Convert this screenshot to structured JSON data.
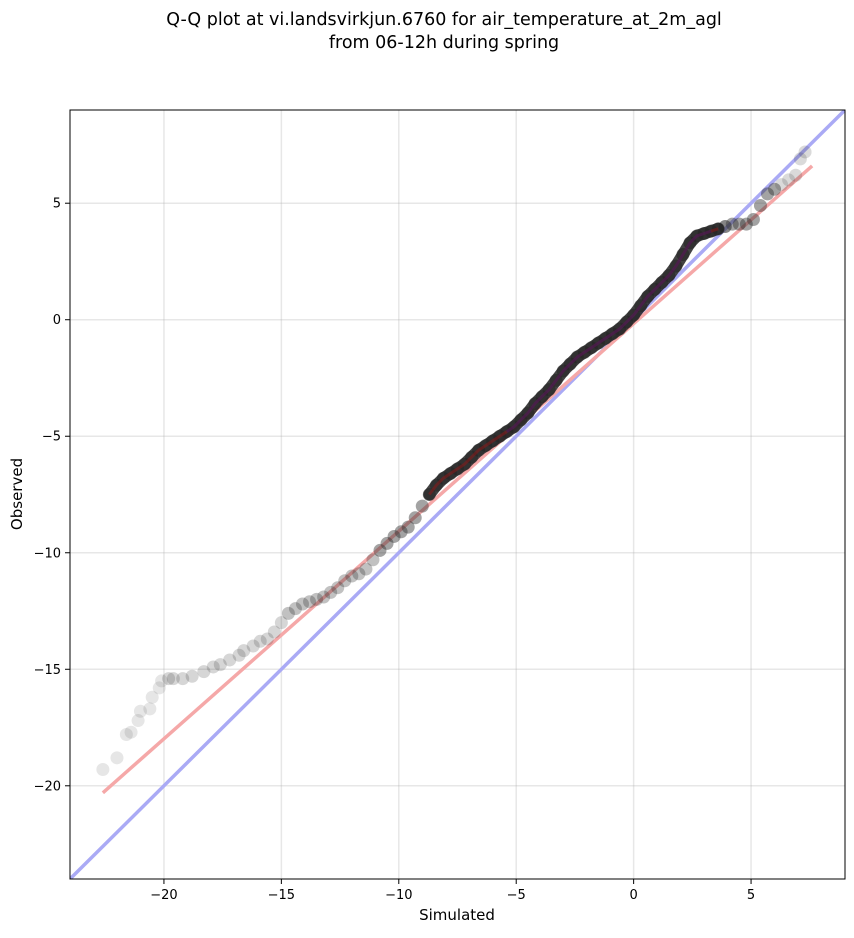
{
  "chart_data": {
    "type": "scatter",
    "title": [
      "Q-Q plot at vi.landsvirkjun.6760 for air_temperature_at_2m_agl",
      "from 06-12h during spring"
    ],
    "xlabel": "Simulated",
    "ylabel": "Observed",
    "xlim": [
      -24,
      9
    ],
    "ylim": [
      -24,
      9
    ],
    "xticks": [
      -20,
      -15,
      -10,
      -5,
      0,
      5
    ],
    "yticks": [
      -20,
      -15,
      -10,
      -5,
      0,
      5
    ],
    "xtick_labels": [
      "−20",
      "−15",
      "−10",
      "−5",
      "0",
      "5"
    ],
    "ytick_labels": [
      "−20",
      "−15",
      "−10",
      "−5",
      "0",
      "5"
    ],
    "grid": true,
    "colors": {
      "points": "#333333",
      "identity_line": "#aaaaf5",
      "fit_line": "#f5a8a8",
      "fit_line_dense": "#8b1a1a",
      "dense_core": "#1a1a8c"
    },
    "series": [
      {
        "kind": "quantile_points",
        "x": [
          -22.6,
          -22.0,
          -21.6,
          -21.4,
          -21.1,
          -21.0,
          -20.6,
          -20.5,
          -20.2,
          -20.1,
          -19.8,
          -19.6,
          -19.2,
          -18.8,
          -18.3,
          -17.9,
          -17.6,
          -17.2,
          -16.8,
          -16.6,
          -16.2,
          -15.9,
          -15.6,
          -15.3,
          -15.0,
          -14.7,
          -14.4,
          -14.1,
          -13.8,
          -13.5,
          -13.2,
          -12.9,
          -12.6,
          -12.3,
          -12.0,
          -11.7,
          -11.4,
          -11.1,
          -10.8,
          -10.5,
          -10.2,
          -9.9,
          -9.6,
          -9.3,
          -9.0,
          -8.7,
          -8.4,
          -8.1,
          -7.8,
          -7.5,
          -7.2,
          -6.9,
          -6.6,
          -6.3,
          -6.0,
          -5.7,
          -5.4,
          -5.1,
          -4.8,
          -4.5,
          -4.2,
          -3.9,
          -3.6,
          -3.3,
          -3.0,
          -2.7,
          -2.4,
          -2.1,
          -1.8,
          -1.5,
          -1.2,
          -0.9,
          -0.6,
          -0.3,
          0.0,
          0.3,
          0.6,
          0.9,
          1.2,
          1.5,
          1.8,
          2.1,
          2.4,
          2.7,
          3.0,
          3.3,
          3.6,
          3.9,
          4.2,
          4.5,
          4.8,
          5.1,
          5.4,
          5.7,
          6.0,
          6.3,
          6.6,
          6.9,
          7.1,
          7.3
        ],
        "y": [
          -19.3,
          -18.8,
          -17.8,
          -17.7,
          -17.2,
          -16.8,
          -16.7,
          -16.2,
          -15.8,
          -15.5,
          -15.4,
          -15.4,
          -15.4,
          -15.3,
          -15.1,
          -14.9,
          -14.8,
          -14.6,
          -14.4,
          -14.2,
          -14.0,
          -13.8,
          -13.7,
          -13.4,
          -13.0,
          -12.6,
          -12.4,
          -12.2,
          -12.1,
          -12.0,
          -11.9,
          -11.7,
          -11.5,
          -11.2,
          -11.0,
          -10.9,
          -10.7,
          -10.3,
          -9.9,
          -9.6,
          -9.3,
          -9.1,
          -8.9,
          -8.5,
          -8.0,
          -7.5,
          -7.1,
          -6.8,
          -6.6,
          -6.4,
          -6.2,
          -5.9,
          -5.6,
          -5.4,
          -5.2,
          -5.0,
          -4.8,
          -4.6,
          -4.3,
          -4.0,
          -3.6,
          -3.3,
          -3.0,
          -2.6,
          -2.2,
          -1.9,
          -1.6,
          -1.4,
          -1.2,
          -1.0,
          -0.8,
          -0.6,
          -0.4,
          -0.1,
          0.2,
          0.6,
          1.0,
          1.3,
          1.6,
          1.9,
          2.3,
          2.8,
          3.3,
          3.6,
          3.7,
          3.8,
          3.9,
          4.0,
          4.1,
          4.1,
          4.1,
          4.3,
          4.9,
          5.4,
          5.6,
          5.8,
          6.0,
          6.2,
          6.9,
          7.2
        ]
      },
      {
        "kind": "identity_line",
        "x": [
          -24,
          9
        ],
        "y": [
          -24,
          9
        ]
      },
      {
        "kind": "fit_line",
        "x": [
          -22.6,
          7.6
        ],
        "y": [
          -20.3,
          6.6
        ]
      }
    ]
  }
}
